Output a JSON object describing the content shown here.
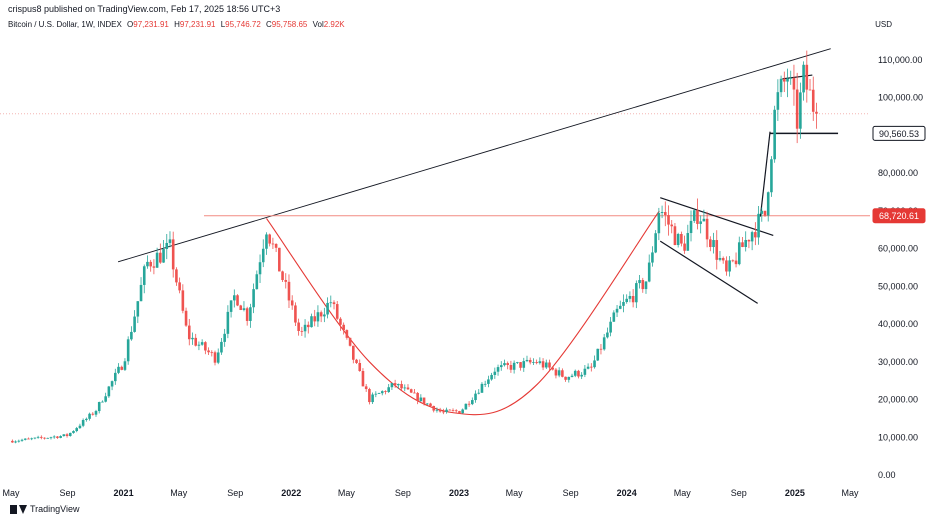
{
  "header": {
    "publisher_text": "crispus8 published on TradingView.com, Feb 17, 2025 18:56 UTC+3"
  },
  "legend": {
    "symbol": "Bitcoin / U.S. Dollar, 1W, INDEX",
    "o_label": "O",
    "o_value": "97,231.91",
    "h_label": "H",
    "h_value": "97,231.91",
    "l_label": "L",
    "l_value": "95,746.72",
    "c_label": "C",
    "c_value": "95,758.65",
    "vol_label": "Vol",
    "vol_value": "2.92K"
  },
  "currency": "USD",
  "footer": {
    "brand": "TradingView"
  },
  "colors": {
    "up": "#26a69a",
    "down": "#ef5350",
    "resistance": "#f28b82",
    "label_red": "#e53935",
    "dark": "#131722"
  },
  "chart_data": {
    "type": "candlestick",
    "title": "",
    "xlabel": "",
    "ylabel": "",
    "ylim": [
      0,
      115000
    ],
    "x_ticks": [
      "May",
      "Sep",
      "2021",
      "May",
      "Sep",
      "2022",
      "May",
      "Sep",
      "2023",
      "May",
      "Sep",
      "2024",
      "May",
      "Sep",
      "2025",
      "May"
    ],
    "y_ticks": [
      "110,000.00",
      "100,000.00",
      "90,000.00",
      "80,000.00",
      "70,000.00",
      "60,000.00",
      "50,000.00",
      "40,000.00",
      "30,000.00",
      "20,000.00",
      "10,000.00",
      "0.00"
    ],
    "price_labels": [
      {
        "value": 90560.53,
        "text": "90,560.53",
        "style": "dark"
      },
      {
        "value": 68720.61,
        "text": "68,720.61",
        "style": "red"
      }
    ],
    "current_price_line": 95758.65,
    "anchors": [
      {
        "date": "2020-05-01",
        "value": 9000
      },
      {
        "date": "2020-09-01",
        "value": 10500
      },
      {
        "date": "2020-11-01",
        "value": 17000
      },
      {
        "date": "2021-01-01",
        "value": 30000
      },
      {
        "date": "2021-02-20",
        "value": 56000
      },
      {
        "date": "2021-04-12",
        "value": 60000
      },
      {
        "date": "2021-05-20",
        "value": 37000
      },
      {
        "date": "2021-07-20",
        "value": 31000
      },
      {
        "date": "2021-09-01",
        "value": 48000
      },
      {
        "date": "2021-09-28",
        "value": 42000
      },
      {
        "date": "2021-11-08",
        "value": 66000
      },
      {
        "date": "2022-01-20",
        "value": 37000
      },
      {
        "date": "2022-03-28",
        "value": 46000
      },
      {
        "date": "2022-06-20",
        "value": 20000
      },
      {
        "date": "2022-08-15",
        "value": 24000
      },
      {
        "date": "2022-10-15",
        "value": 19500
      },
      {
        "date": "2022-11-25",
        "value": 16500
      },
      {
        "date": "2023-01-05",
        "value": 17000
      },
      {
        "date": "2023-03-20",
        "value": 28000
      },
      {
        "date": "2023-06-20",
        "value": 30000
      },
      {
        "date": "2023-08-20",
        "value": 26000
      },
      {
        "date": "2023-10-15",
        "value": 28000
      },
      {
        "date": "2023-12-10",
        "value": 43000
      },
      {
        "date": "2024-02-15",
        "value": 52000
      },
      {
        "date": "2024-03-12",
        "value": 71000
      },
      {
        "date": "2024-05-01",
        "value": 60000
      },
      {
        "date": "2024-06-05",
        "value": 70000
      },
      {
        "date": "2024-08-05",
        "value": 53000
      },
      {
        "date": "2024-09-25",
        "value": 64000
      },
      {
        "date": "2024-10-28",
        "value": 69000
      },
      {
        "date": "2024-11-20",
        "value": 98000
      },
      {
        "date": "2024-12-16",
        "value": 106000
      },
      {
        "date": "2025-01-06",
        "value": 94000
      },
      {
        "date": "2025-01-20",
        "value": 105000
      },
      {
        "date": "2025-02-17",
        "value": 95758.65
      }
    ],
    "annotations": [
      {
        "name": "rising-trendline",
        "kind": "line",
        "points": [
          [
            "2020-12-20",
            56500
          ],
          [
            "2025-03-20",
            113000
          ]
        ]
      },
      {
        "name": "resistance-line",
        "kind": "hline",
        "value": 68720.61,
        "from": "2021-06-25",
        "to": "2025-06-20"
      },
      {
        "name": "cup-curve",
        "kind": "curve",
        "points": [
          [
            "2021-11-08",
            68000
          ],
          [
            "2022-06-20",
            30000
          ],
          [
            "2022-12-20",
            16500
          ],
          [
            "2023-06-20",
            24000
          ],
          [
            "2024-03-12",
            70000
          ]
        ]
      },
      {
        "name": "channel-top",
        "kind": "line",
        "points": [
          [
            "2024-03-14",
            73500
          ],
          [
            "2024-11-15",
            63500
          ]
        ]
      },
      {
        "name": "channel-bottom",
        "kind": "line",
        "points": [
          [
            "2024-03-14",
            62000
          ],
          [
            "2024-10-12",
            45500
          ]
        ]
      },
      {
        "name": "flag-pole",
        "kind": "line",
        "points": [
          [
            "2024-10-18",
            68500
          ],
          [
            "2024-11-08",
            91000
          ]
        ]
      },
      {
        "name": "flag-top",
        "kind": "line",
        "points": [
          [
            "2024-12-05",
            105000
          ],
          [
            "2025-02-08",
            106000
          ]
        ]
      },
      {
        "name": "support-90560",
        "kind": "hline",
        "value": 90560.53,
        "from": "2024-11-08",
        "to": "2025-04-05"
      }
    ]
  }
}
